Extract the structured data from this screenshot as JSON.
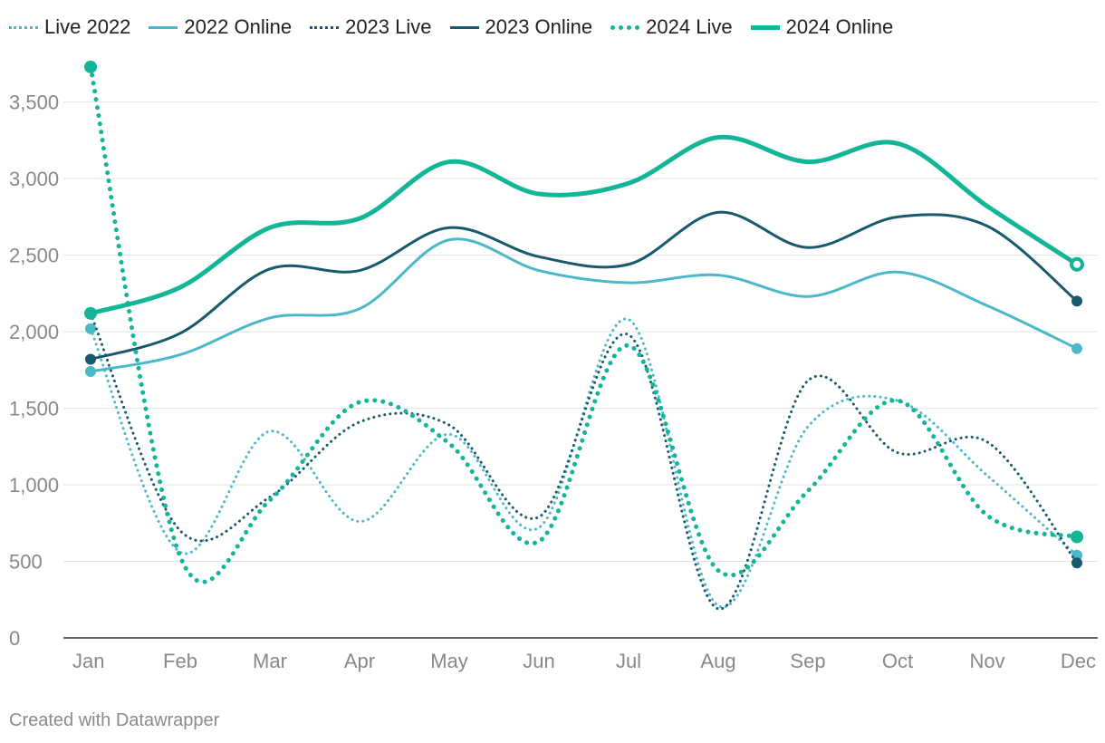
{
  "chart_data": {
    "type": "line",
    "title": "",
    "xlabel": "",
    "ylabel": "",
    "categories": [
      "Jan",
      "Feb",
      "Mar",
      "Apr",
      "May",
      "Jun",
      "Jul",
      "Aug",
      "Sep",
      "Oct",
      "Nov",
      "Dec"
    ],
    "ylim": [
      0,
      3800
    ],
    "yticks": [
      0,
      500,
      1000,
      1500,
      2000,
      2500,
      3000,
      3500
    ],
    "ytick_labels": [
      "0",
      "500",
      "1,000",
      "1,500",
      "2,000",
      "2,500",
      "3,000",
      "3,500"
    ],
    "grid": true,
    "legend_position": "top-left",
    "series": [
      {
        "name": "Live 2022",
        "color": "#4ab8c8",
        "style": "dotted",
        "width": 3,
        "values": [
          2020,
          560,
          1350,
          760,
          1330,
          720,
          2080,
          210,
          1380,
          1550,
          1060,
          540
        ]
      },
      {
        "name": "2022 Online",
        "color": "#4ab8c8",
        "style": "solid",
        "width": 3,
        "values": [
          1740,
          1850,
          2090,
          2150,
          2600,
          2400,
          2320,
          2370,
          2230,
          2390,
          2170,
          1890
        ]
      },
      {
        "name": "2023 Live",
        "color": "#17596e",
        "style": "dotted",
        "width": 3,
        "values": [
          2120,
          700,
          920,
          1410,
          1390,
          790,
          1980,
          190,
          1680,
          1210,
          1280,
          490
        ]
      },
      {
        "name": "2023 Online",
        "color": "#17596e",
        "style": "solid",
        "width": 3,
        "values": [
          1820,
          1990,
          2410,
          2400,
          2680,
          2490,
          2440,
          2780,
          2550,
          2750,
          2690,
          2200
        ]
      },
      {
        "name": "2024 Live",
        "color": "#13b597",
        "style": "dotted",
        "width": 5,
        "values": [
          3730,
          530,
          900,
          1540,
          1270,
          630,
          1910,
          440,
          960,
          1550,
          800,
          660
        ]
      },
      {
        "name": "2024 Online",
        "color": "#13b597",
        "style": "solid",
        "width": 5,
        "values": [
          2120,
          2290,
          2680,
          2740,
          3110,
          2900,
          2970,
          3270,
          3110,
          3230,
          2820,
          2440
        ]
      }
    ],
    "credit": "Created with Datawrapper"
  }
}
